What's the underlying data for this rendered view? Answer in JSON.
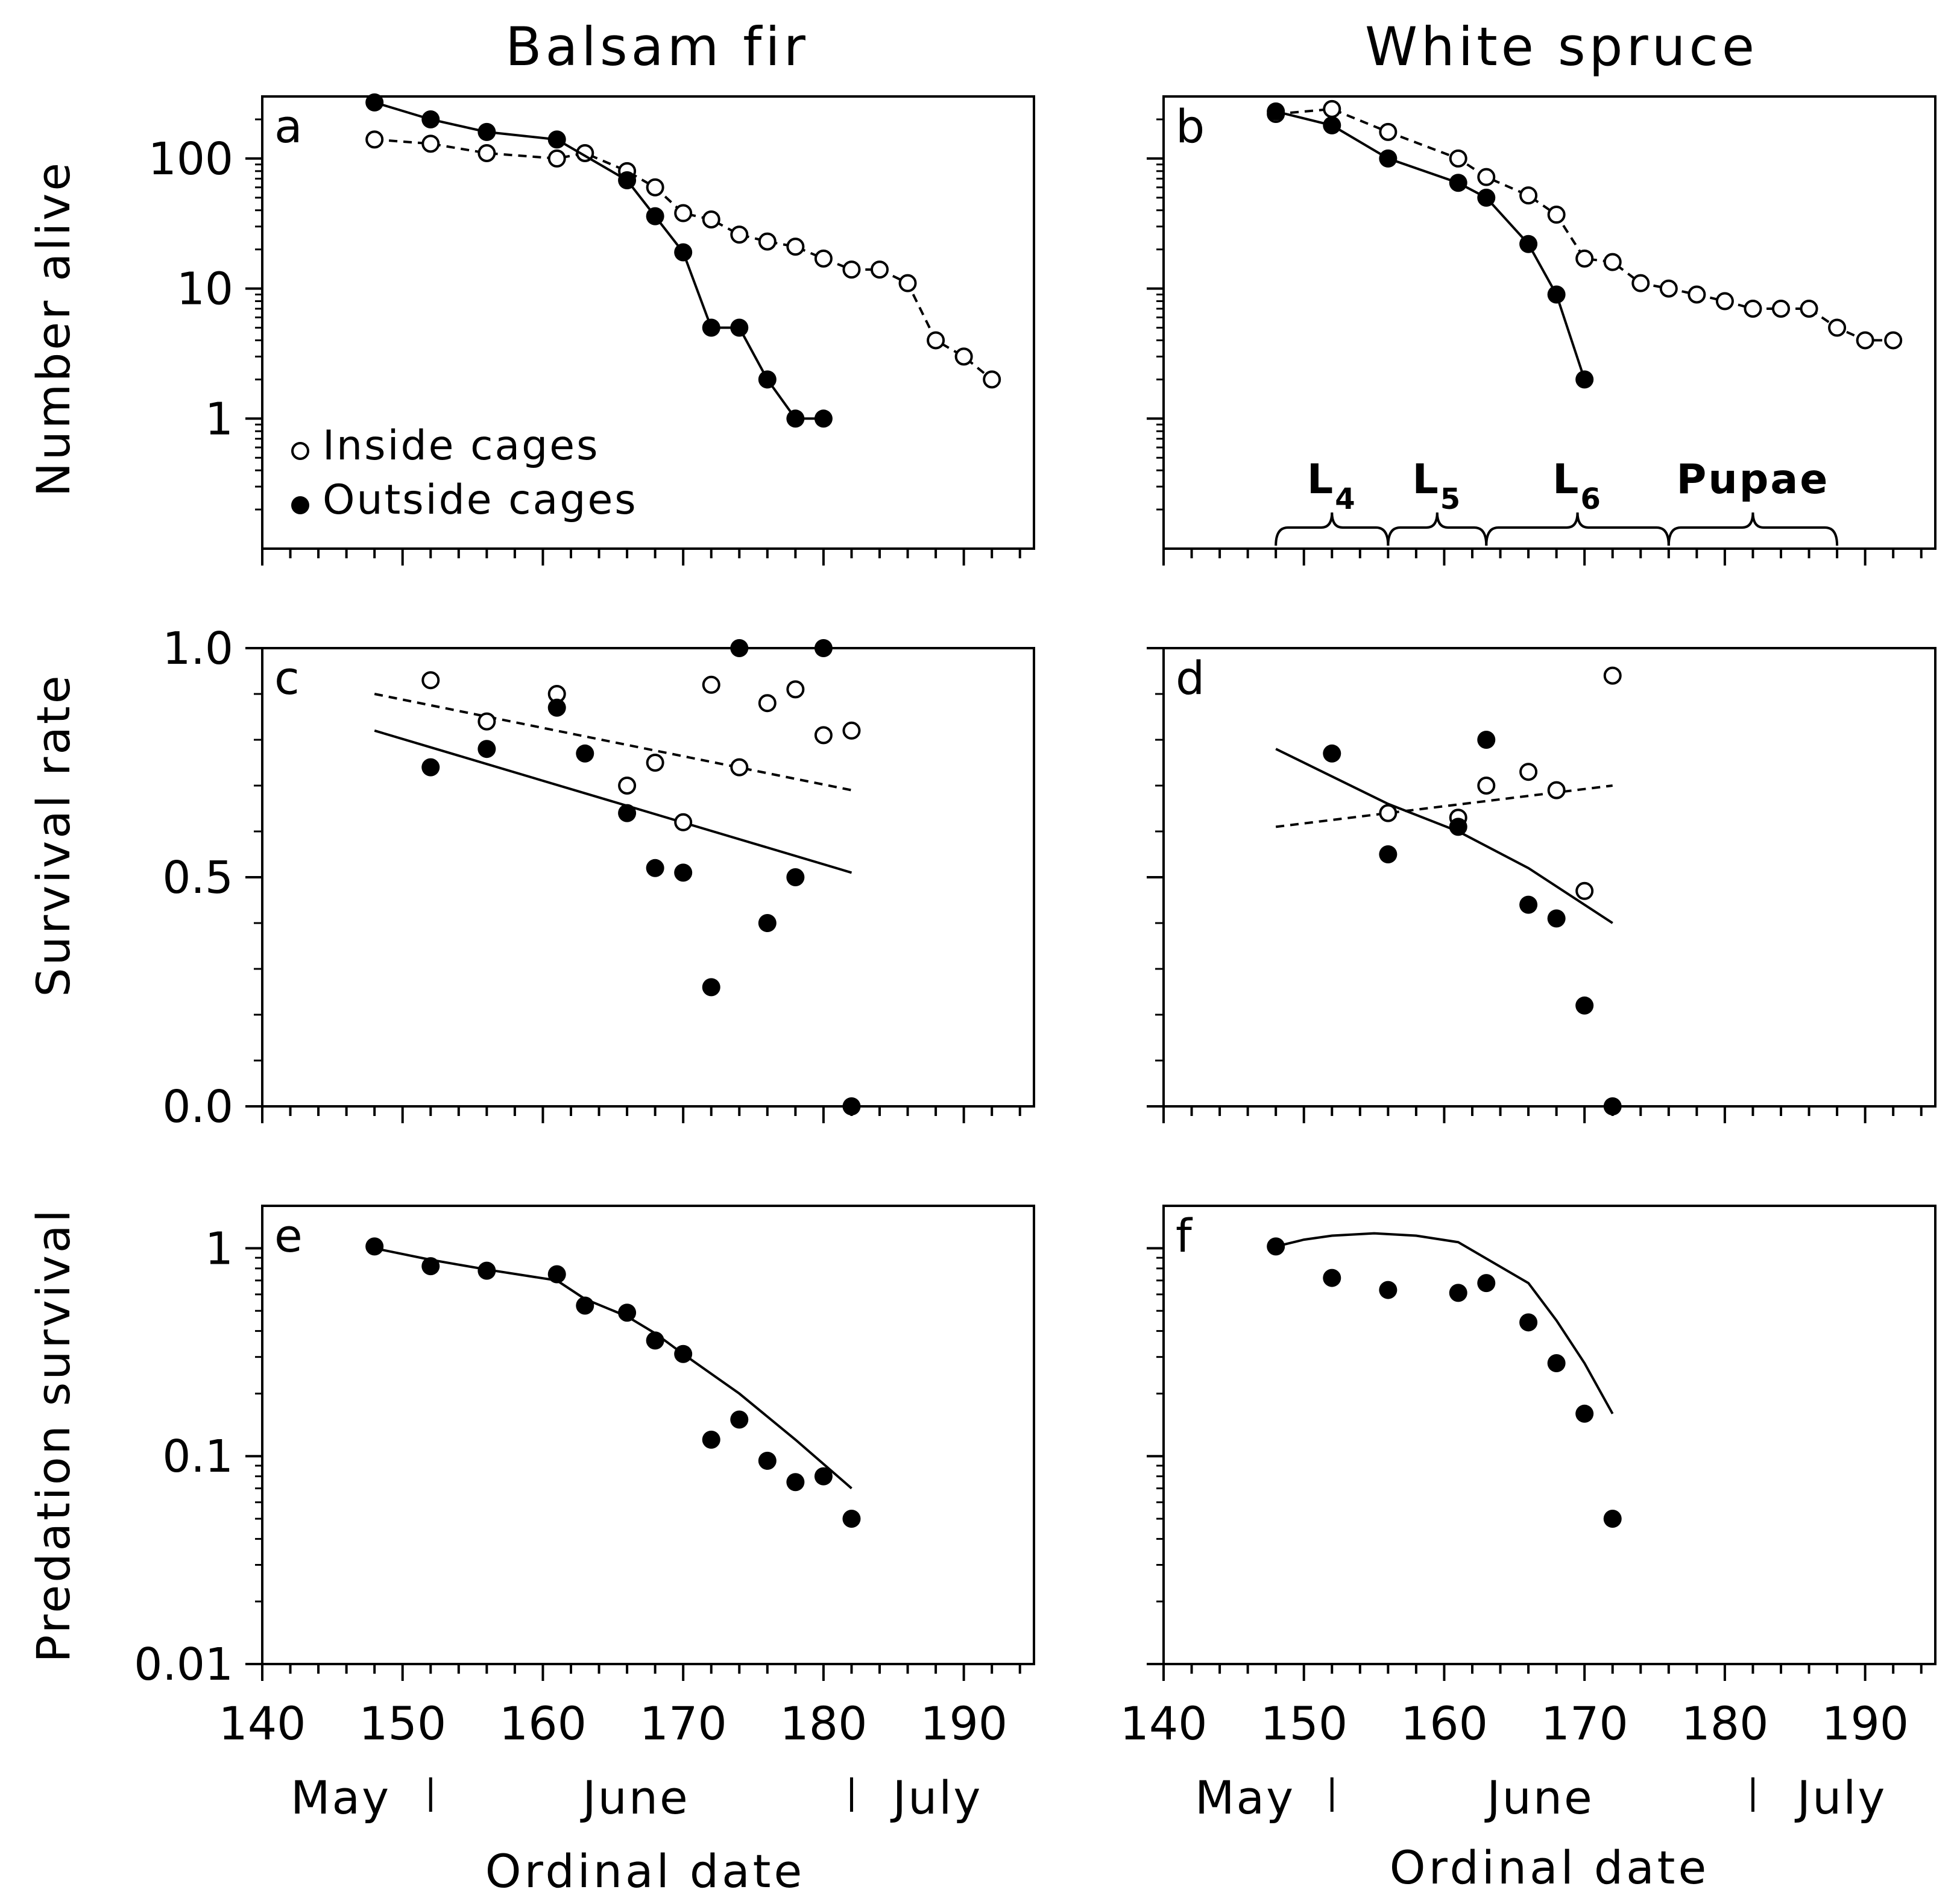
{
  "columns": [
    {
      "title": "Balsam fir",
      "xlabel": "Ordinal date"
    },
    {
      "title": "White spruce",
      "xlabel": "Ordinal date"
    }
  ],
  "row_ylabels": [
    "Number alive",
    "Survival rate",
    "Predation survival"
  ],
  "legend": {
    "inside": "Inside cages",
    "outside": "Outside cages"
  },
  "months": [
    "May",
    "June",
    "July"
  ],
  "month_boundaries": [
    152,
    182
  ],
  "stages": [
    {
      "label": "L",
      "sub": "4",
      "start": 148,
      "end": 156
    },
    {
      "label": "L",
      "sub": "5",
      "start": 156,
      "end": 163
    },
    {
      "label": "L",
      "sub": "6",
      "start": 163,
      "end": 176
    },
    {
      "label": "Pupae",
      "sub": "",
      "start": 176,
      "end": 188
    }
  ],
  "colors": {
    "ink": "#000000",
    "background": "#ffffff"
  },
  "chart_data": [
    {
      "panel": "a",
      "type": "line",
      "yscale": "log",
      "xlim": [
        140,
        195
      ],
      "ylim": [
        0.1,
        300
      ],
      "xticks": [
        140,
        150,
        160,
        170,
        180,
        190
      ],
      "yticks": [
        1,
        10,
        100
      ],
      "ytick_labels": [
        "1",
        "10",
        "100"
      ],
      "series": [
        {
          "name": "Inside cages",
          "marker": "open",
          "line": "dashed",
          "x": [
            148,
            152,
            156,
            161,
            163,
            166,
            168,
            170,
            172,
            174,
            176,
            178,
            180,
            182,
            184,
            186,
            188,
            190,
            192
          ],
          "y": [
            140,
            130,
            110,
            100,
            110,
            80,
            60,
            38,
            34,
            26,
            23,
            21,
            17,
            14,
            14,
            11,
            4,
            3,
            2
          ]
        },
        {
          "name": "Outside cages",
          "marker": "filled",
          "line": "solid",
          "x": [
            148,
            152,
            156,
            161,
            166,
            168,
            170,
            172,
            174,
            176,
            178,
            180
          ],
          "y": [
            270,
            200,
            160,
            140,
            68,
            36,
            19,
            5,
            5,
            2,
            1,
            1
          ]
        }
      ]
    },
    {
      "panel": "b",
      "type": "line",
      "yscale": "log",
      "xlim": [
        140,
        195
      ],
      "ylim": [
        0.1,
        300
      ],
      "xticks": [
        140,
        150,
        160,
        170,
        180,
        190
      ],
      "yticks": [
        1,
        10,
        100
      ],
      "series": [
        {
          "name": "Inside cages",
          "marker": "open",
          "line": "dashed",
          "x": [
            148,
            152,
            156,
            161,
            163,
            166,
            168,
            170,
            172,
            174,
            176,
            178,
            180,
            182,
            184,
            186,
            188,
            190,
            192
          ],
          "y": [
            220,
            240,
            160,
            100,
            72,
            52,
            37,
            17,
            16,
            11,
            10,
            9,
            8,
            7,
            7,
            7,
            5,
            4,
            4
          ]
        },
        {
          "name": "Outside cages",
          "marker": "filled",
          "line": "solid",
          "x": [
            148,
            152,
            156,
            161,
            163,
            166,
            168,
            170
          ],
          "y": [
            230,
            180,
            100,
            65,
            50,
            22,
            9,
            2
          ]
        }
      ]
    },
    {
      "panel": "c",
      "type": "scatter",
      "xlim": [
        140,
        195
      ],
      "ylim": [
        0,
        1
      ],
      "xticks": [
        140,
        150,
        160,
        170,
        180,
        190
      ],
      "yticks": [
        0,
        0.5,
        1
      ],
      "ytick_labels": [
        "0.0",
        "0.5",
        "1.0"
      ],
      "series": [
        {
          "name": "Inside cages",
          "marker": "open",
          "x": [
            152,
            156,
            161,
            166,
            168,
            170,
            172,
            174,
            176,
            178,
            180,
            182
          ],
          "y": [
            0.93,
            0.84,
            0.9,
            0.7,
            0.75,
            0.62,
            0.92,
            0.74,
            0.88,
            0.91,
            0.81,
            0.82
          ]
        },
        {
          "name": "Outside cages",
          "marker": "filled",
          "x": [
            152,
            156,
            161,
            163,
            166,
            168,
            170,
            172,
            174,
            176,
            178,
            180,
            182
          ],
          "y": [
            0.74,
            0.78,
            0.87,
            0.77,
            0.64,
            0.52,
            0.51,
            0.26,
            1.0,
            0.4,
            0.5,
            1.0,
            0.0
          ]
        }
      ],
      "fits": [
        {
          "name": "Inside cages",
          "line": "dashed",
          "x": [
            148,
            182
          ],
          "y": [
            0.9,
            0.69
          ]
        },
        {
          "name": "Outside cages",
          "line": "solid",
          "x": [
            148,
            182
          ],
          "y": [
            0.82,
            0.51
          ]
        }
      ]
    },
    {
      "panel": "d",
      "type": "scatter",
      "xlim": [
        140,
        195
      ],
      "ylim": [
        0,
        1
      ],
      "xticks": [
        140,
        150,
        160,
        170,
        180,
        190
      ],
      "yticks": [
        0,
        0.5,
        1
      ],
      "series": [
        {
          "name": "Inside cages",
          "marker": "open",
          "x": [
            156,
            161,
            163,
            166,
            168,
            170,
            172
          ],
          "y": [
            0.64,
            0.63,
            0.7,
            0.73,
            0.69,
            0.47,
            0.94
          ]
        },
        {
          "name": "Outside cages",
          "marker": "filled",
          "x": [
            152,
            156,
            161,
            163,
            166,
            168,
            170,
            172
          ],
          "y": [
            0.77,
            0.55,
            0.61,
            0.8,
            0.44,
            0.41,
            0.22,
            0.0
          ]
        }
      ],
      "fits": [
        {
          "name": "Inside cages",
          "line": "dashed",
          "x": [
            148,
            172
          ],
          "y": [
            0.61,
            0.7
          ]
        },
        {
          "name": "Outside cages",
          "line": "solid",
          "x": [
            148,
            152,
            156,
            161,
            166,
            172
          ],
          "y": [
            0.78,
            0.72,
            0.66,
            0.6,
            0.52,
            0.4
          ]
        }
      ]
    },
    {
      "panel": "e",
      "type": "scatter",
      "yscale": "log",
      "xlim": [
        140,
        195
      ],
      "ylim": [
        0.01,
        1.6
      ],
      "xticks": [
        140,
        150,
        160,
        170,
        180,
        190
      ],
      "yticks": [
        0.01,
        0.1,
        1
      ],
      "ytick_labels": [
        "0.01",
        "0.1",
        "1"
      ],
      "series": [
        {
          "name": "Predation survival",
          "marker": "filled",
          "x": [
            148,
            152,
            156,
            161,
            163,
            166,
            168,
            170,
            172,
            174,
            176,
            178,
            180,
            182
          ],
          "y": [
            1.02,
            0.82,
            0.78,
            0.75,
            0.53,
            0.49,
            0.36,
            0.31,
            0.12,
            0.15,
            0.095,
            0.075,
            0.08,
            0.05
          ]
        }
      ],
      "fits": [
        {
          "name": "Model",
          "line": "solid",
          "x": [
            148,
            152,
            156,
            161,
            163,
            166,
            168,
            170,
            174,
            178,
            182
          ],
          "y": [
            1.0,
            0.88,
            0.79,
            0.7,
            0.57,
            0.47,
            0.39,
            0.31,
            0.2,
            0.12,
            0.07
          ]
        }
      ]
    },
    {
      "panel": "f",
      "type": "scatter",
      "yscale": "log",
      "xlim": [
        140,
        195
      ],
      "ylim": [
        0.01,
        1.6
      ],
      "xticks": [
        140,
        150,
        160,
        170,
        180,
        190
      ],
      "yticks": [
        0.01,
        0.1,
        1
      ],
      "series": [
        {
          "name": "Predation survival",
          "marker": "filled",
          "x": [
            148,
            152,
            156,
            161,
            163,
            166,
            168,
            170,
            172
          ],
          "y": [
            1.02,
            0.72,
            0.63,
            0.61,
            0.68,
            0.44,
            0.28,
            0.16,
            0.05
          ]
        }
      ],
      "fits": [
        {
          "name": "Model",
          "line": "solid",
          "x": [
            148,
            150,
            152,
            155,
            158,
            161,
            166,
            168,
            170,
            172
          ],
          "y": [
            1.02,
            1.1,
            1.15,
            1.18,
            1.15,
            1.07,
            0.68,
            0.45,
            0.28,
            0.16
          ]
        }
      ]
    }
  ]
}
